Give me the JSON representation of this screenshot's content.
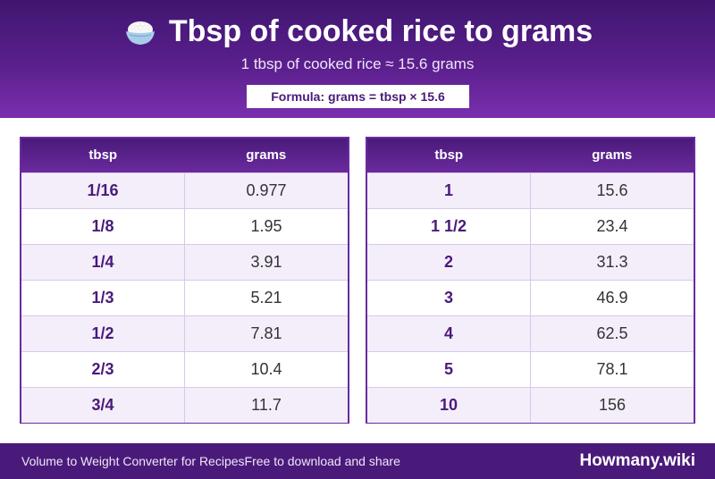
{
  "header": {
    "title": "Tbsp of cooked rice to grams",
    "title_icon": "rice-bowl-icon",
    "subtitle": "1 tbsp of cooked rice ≈ 15.6 grams",
    "formula": "Formula: grams = tbsp × 15.6"
  },
  "tables": {
    "left": {
      "col1": "tbsp",
      "col2": "grams",
      "rows": [
        {
          "tbsp": "1/16",
          "grams": "0.977"
        },
        {
          "tbsp": "1/8",
          "grams": "1.95"
        },
        {
          "tbsp": "1/4",
          "grams": "3.91"
        },
        {
          "tbsp": "1/3",
          "grams": "5.21"
        },
        {
          "tbsp": "1/2",
          "grams": "7.81"
        },
        {
          "tbsp": "2/3",
          "grams": "10.4"
        },
        {
          "tbsp": "3/4",
          "grams": "11.7"
        }
      ]
    },
    "right": {
      "col1": "tbsp",
      "col2": "grams",
      "rows": [
        {
          "tbsp": "1",
          "grams": "15.6"
        },
        {
          "tbsp": "1 1/2",
          "grams": "23.4"
        },
        {
          "tbsp": "2",
          "grams": "31.3"
        },
        {
          "tbsp": "3",
          "grams": "46.9"
        },
        {
          "tbsp": "4",
          "grams": "62.5"
        },
        {
          "tbsp": "5",
          "grams": "78.1"
        },
        {
          "tbsp": "10",
          "grams": "156"
        }
      ]
    }
  },
  "footer": {
    "left_text": "Volume to Weight Converter for RecipesFree to download and share",
    "brand": "Howmany.wiki"
  },
  "colors": {
    "header_dark": "#3f1670",
    "header_light": "#7a2fae",
    "accent": "#4a1a7a",
    "row_alt": "#f4eefb"
  }
}
